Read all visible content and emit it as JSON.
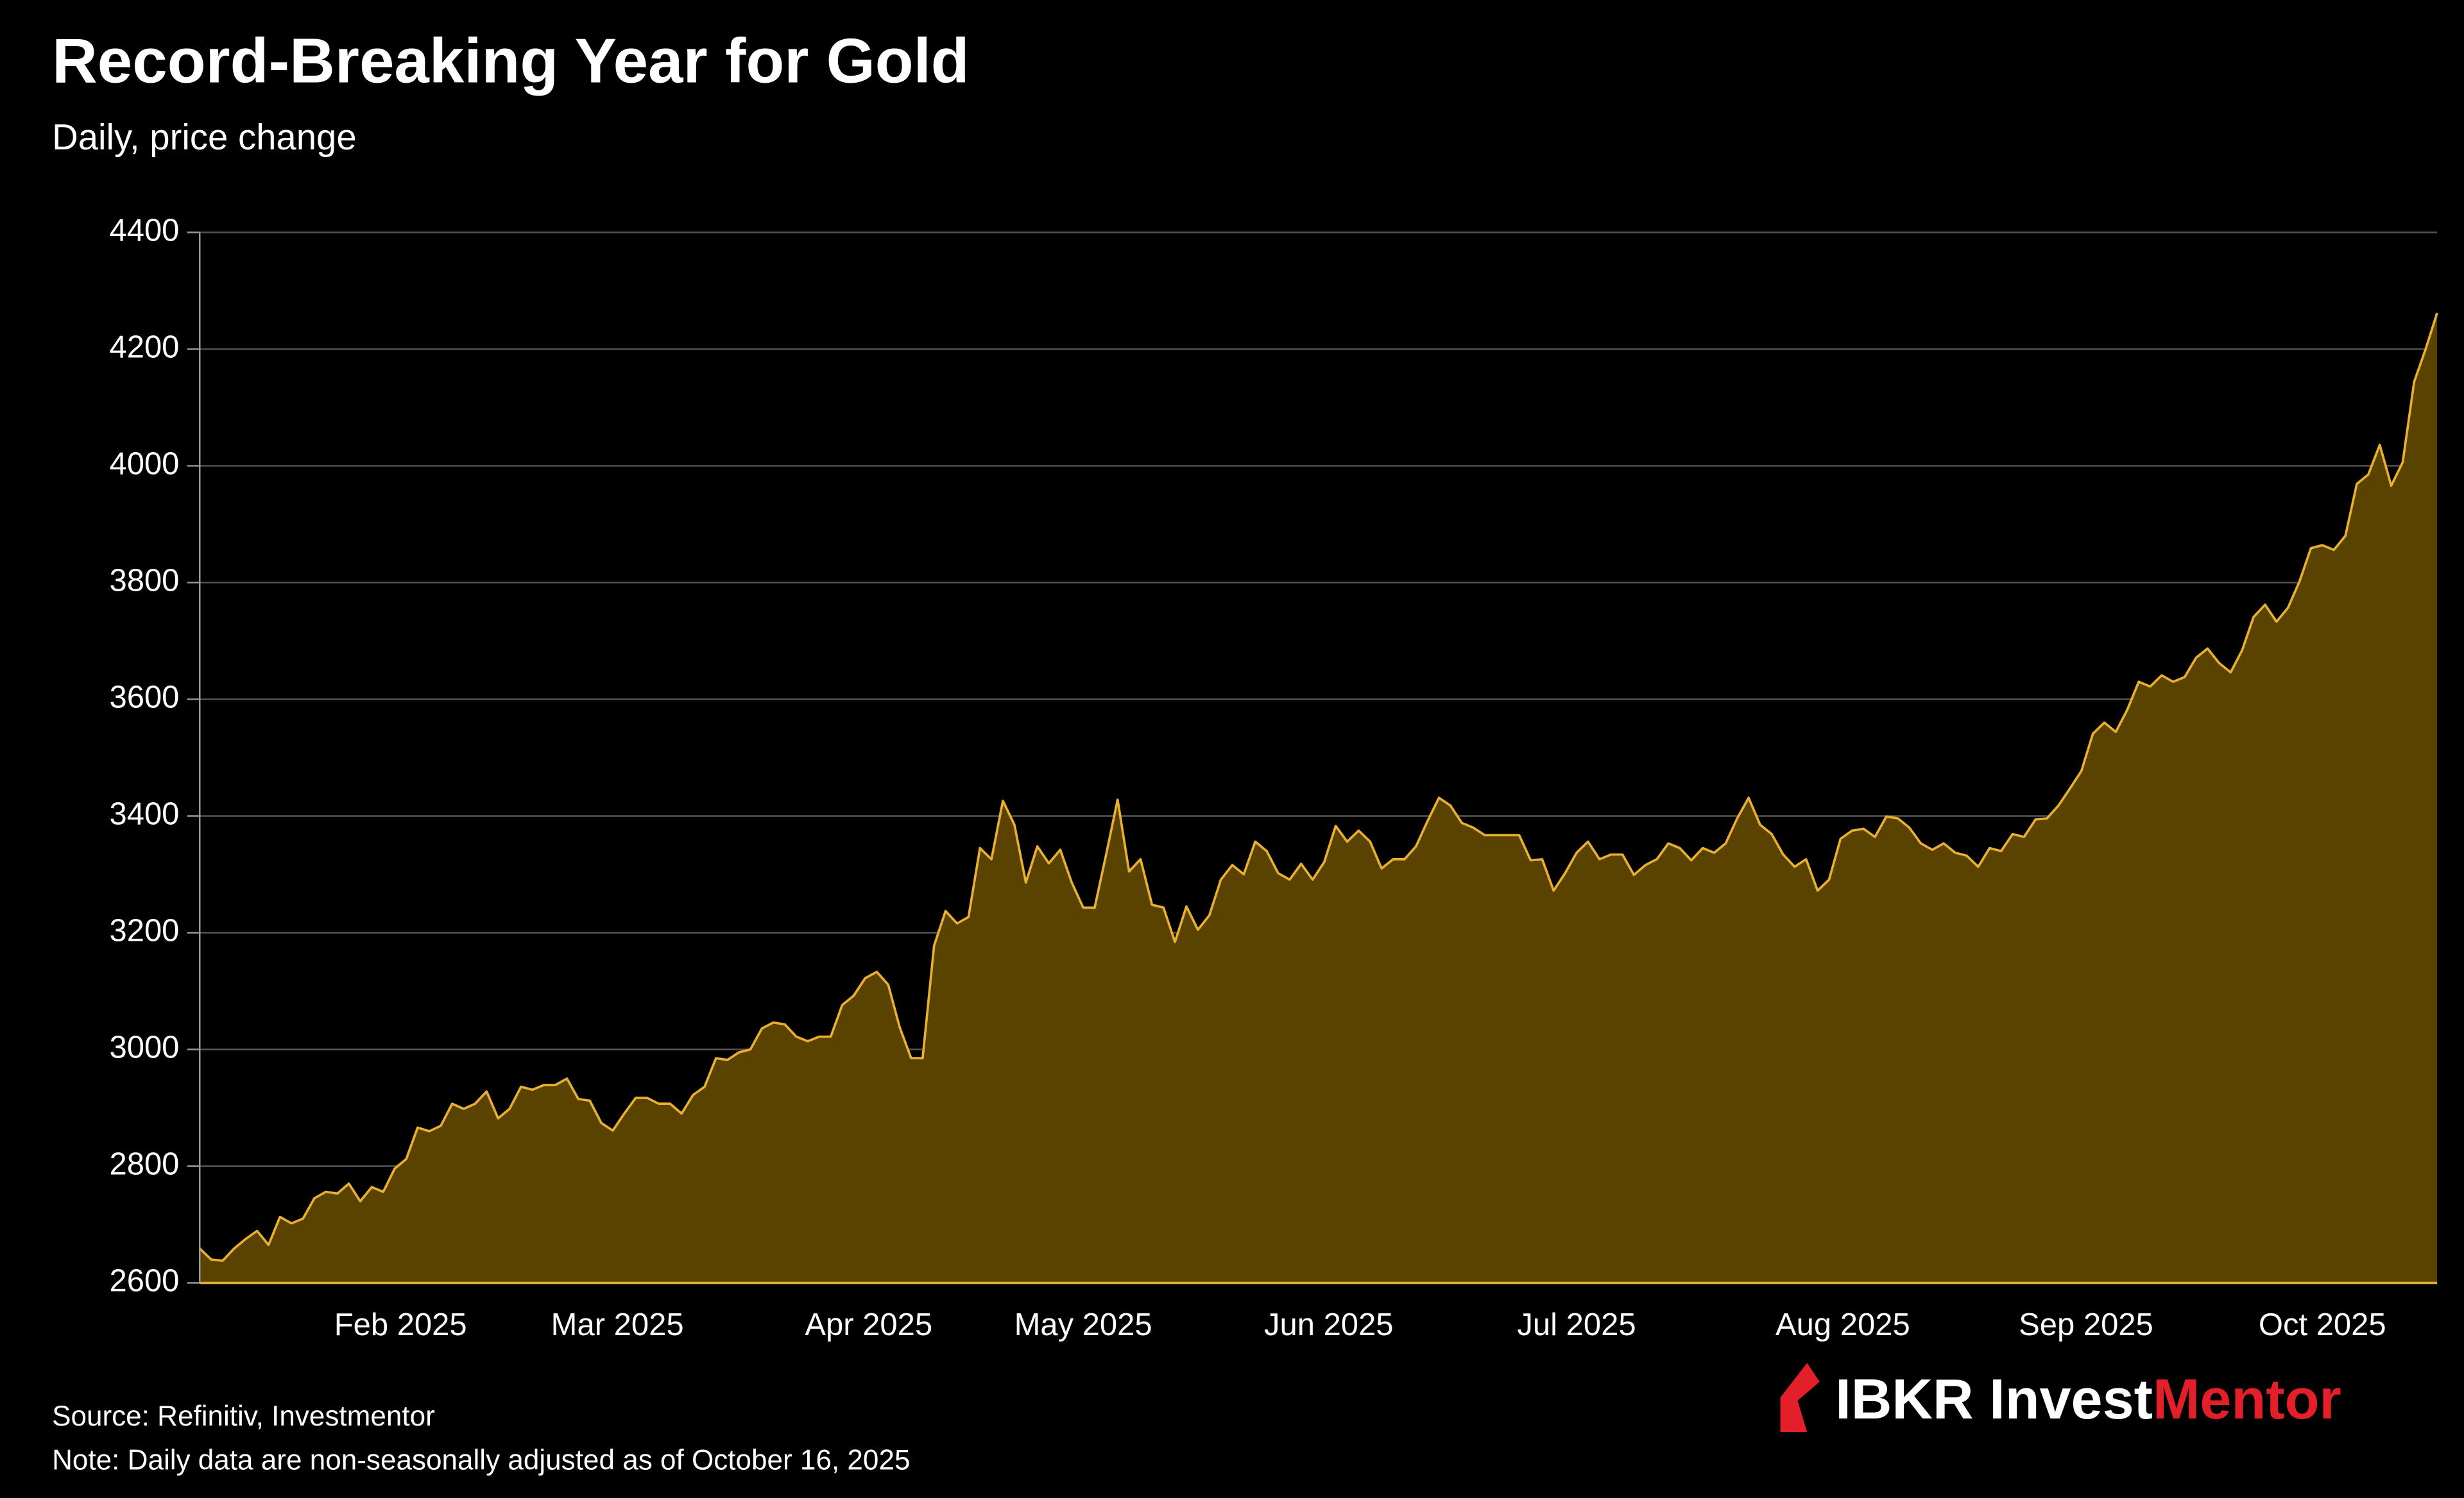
{
  "chart_data": {
    "type": "area",
    "title": "Record-Breaking Year for Gold",
    "subtitle": "Daily, price change",
    "source": "Source: Refinitiv, Investmentor",
    "note": "Note: Daily data are non-seasonally adjusted as of  October 16, 2025",
    "color": "#e8b030",
    "fill": "#5a4300",
    "values": [
      2659,
      2640,
      2638,
      2659,
      2675,
      2689,
      2665,
      2713,
      2702,
      2710,
      2745,
      2756,
      2753,
      2770,
      2740,
      2764,
      2756,
      2796,
      2812,
      2866,
      2860,
      2869,
      2907,
      2898,
      2907,
      2928,
      2882,
      2898,
      2936,
      2931,
      2939,
      2939,
      2950,
      2915,
      2912,
      2874,
      2861,
      2890,
      2917,
      2917,
      2907,
      2907,
      2890,
      2922,
      2936,
      2985,
      2982,
      2995,
      3000,
      3036,
      3046,
      3043,
      3022,
      3014,
      3022,
      3022,
      3076,
      3092,
      3122,
      3133,
      3111,
      3038,
      2985,
      2985,
      3178,
      3237,
      3216,
      3227,
      3345,
      3326,
      3426,
      3385,
      3286,
      3348,
      3319,
      3342,
      3286,
      3243,
      3243,
      3334,
      3428,
      3305,
      3326,
      3248,
      3243,
      3184,
      3245,
      3205,
      3230,
      3291,
      3316,
      3300,
      3356,
      3340,
      3302,
      3291,
      3318,
      3291,
      3321,
      3383,
      3356,
      3375,
      3356,
      3310,
      3326,
      3326,
      3348,
      3391,
      3431,
      3418,
      3388,
      3380,
      3367,
      3367,
      3367,
      3367,
      3324,
      3326,
      3272,
      3302,
      3337,
      3356,
      3326,
      3334,
      3334,
      3299,
      3316,
      3326,
      3353,
      3345,
      3324,
      3345,
      3337,
      3353,
      3396,
      3431,
      3385,
      3369,
      3334,
      3313,
      3326,
      3272,
      3291,
      3361,
      3375,
      3378,
      3364,
      3399,
      3396,
      3380,
      3353,
      3342,
      3353,
      3337,
      3332,
      3313,
      3345,
      3340,
      3369,
      3364,
      3394,
      3396,
      3418,
      3447,
      3477,
      3541,
      3560,
      3544,
      3582,
      3630,
      3622,
      3641,
      3630,
      3638,
      3671,
      3687,
      3662,
      3646,
      3684,
      3741,
      3762,
      3733,
      3757,
      3802,
      3859,
      3864,
      3856,
      3880,
      3969,
      3985,
      4036,
      3966,
      4006,
      4144,
      4200,
      4262
    ],
    "xlim": [
      0,
      195
    ],
    "xticks": [
      {
        "value": 17.5,
        "label": "Feb 2025"
      },
      {
        "value": 36.4,
        "label": "Mar 2025"
      },
      {
        "value": 58.3,
        "label": "Apr 2025"
      },
      {
        "value": 77,
        "label": "May 2025"
      },
      {
        "value": 98.4,
        "label": "Jun 2025"
      },
      {
        "value": 120,
        "label": "Jul 2025"
      },
      {
        "value": 143.2,
        "label": "Aug 2025"
      },
      {
        "value": 164.4,
        "label": "Sep 2025"
      },
      {
        "value": 185,
        "label": "Oct 2025"
      }
    ],
    "ylim": [
      2600,
      4400
    ],
    "yticks": [
      2600,
      2800,
      3000,
      3200,
      3400,
      3600,
      3800,
      4000,
      4200,
      4400
    ],
    "grid": true
  },
  "logo": {
    "brand": "IBKR Invest",
    "accent": "Mentor"
  }
}
